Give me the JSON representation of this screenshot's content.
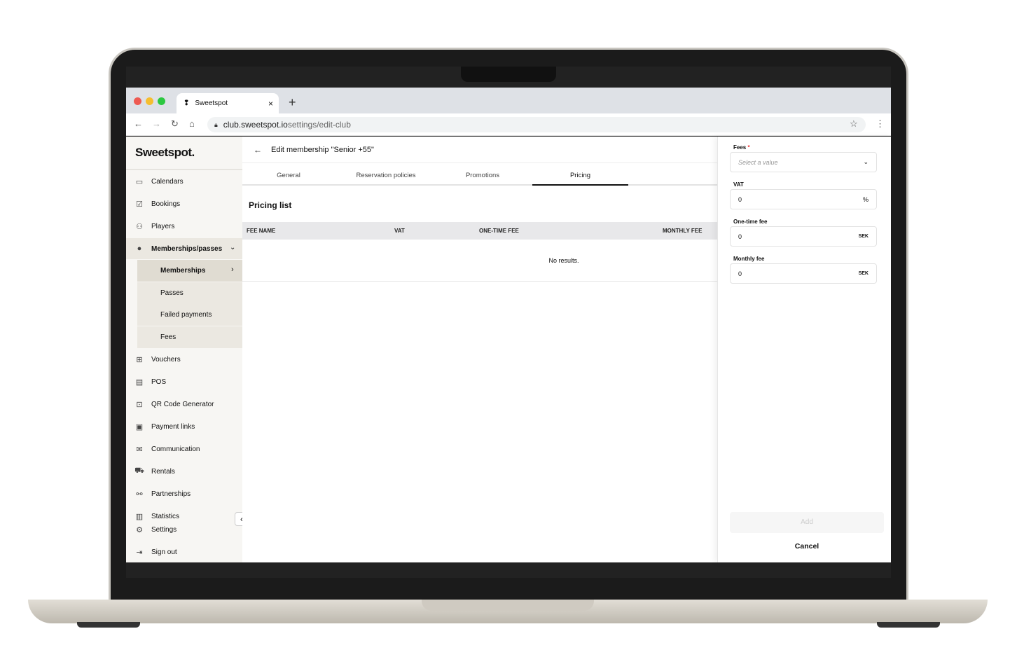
{
  "browser": {
    "tab_title": "Sweetspot",
    "url": "club.sweetspot.io",
    "url_path": "settings/edit-club"
  },
  "sidebar": {
    "logo": "Sweetspot.",
    "items": [
      {
        "label": "Calendars",
        "icon": "calendar-icon"
      },
      {
        "label": "Bookings",
        "icon": "booking-icon"
      },
      {
        "label": "Players",
        "icon": "players-icon"
      },
      {
        "label": "Memberships/passes",
        "icon": "check-badge-icon"
      }
    ],
    "sub_items": [
      {
        "label": "Memberships"
      },
      {
        "label": "Passes"
      },
      {
        "label": "Failed payments"
      },
      {
        "label": "Fees"
      }
    ],
    "items2": [
      {
        "label": "Vouchers",
        "icon": "gift-icon"
      },
      {
        "label": "POS",
        "icon": "register-icon"
      },
      {
        "label": "QR Code Generator",
        "icon": "qr-icon"
      },
      {
        "label": "Payment links",
        "icon": "money-icon"
      },
      {
        "label": "Communication",
        "icon": "mail-icon"
      },
      {
        "label": "Rentals",
        "icon": "cart-icon"
      },
      {
        "label": "Partnerships",
        "icon": "handshake-icon"
      },
      {
        "label": "Statistics",
        "icon": "chart-icon"
      },
      {
        "label": "Settings",
        "icon": "gear-icon"
      },
      {
        "label": "Sign out",
        "icon": "sign-out-icon"
      }
    ]
  },
  "header": {
    "title": "Edit membership \"Senior +55\""
  },
  "tabs": [
    {
      "label": "General"
    },
    {
      "label": "Reservation policies"
    },
    {
      "label": "Promotions"
    },
    {
      "label": "Pricing",
      "active": true
    }
  ],
  "pricing": {
    "title": "Pricing list",
    "columns": [
      "FEE NAME",
      "VAT",
      "ONE-TIME FEE",
      "MONTHLY FEE"
    ],
    "empty": "No results."
  },
  "form": {
    "fees_label": "Fees",
    "required": "*",
    "fees_placeholder": "Select a value",
    "vat_label": "VAT",
    "vat_value": "0",
    "vat_unit": "%",
    "onetime_label": "One-time fee",
    "onetime_value": "0",
    "onetime_unit": "SEK",
    "monthly_label": "Monthly fee",
    "monthly_value": "0",
    "monthly_unit": "SEK",
    "add": "Add",
    "cancel": "Cancel"
  }
}
